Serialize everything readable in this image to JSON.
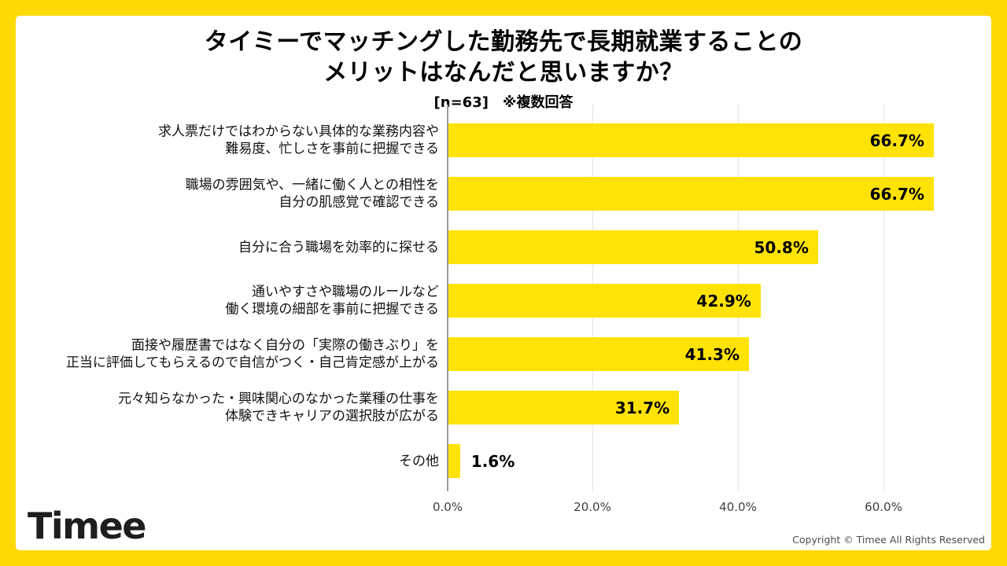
{
  "colors": {
    "frame": "#ffd905",
    "background": "#ffffff",
    "bar": "#ffe206",
    "axis": "#9a9a9a",
    "grid": "#e3e3e3"
  },
  "chart_data": {
    "type": "bar",
    "orientation": "horizontal",
    "title_lines": [
      "タイミーでマッチングした勤務先で長期就業することの",
      "メリットはなんだと思いますか？"
    ],
    "subtitle": "[n=63]　※複数回答",
    "categories": [
      [
        "求人票だけではわからない具体的な業務内容や",
        "難易度、忙しさを事前に把握できる"
      ],
      [
        "職場の雰囲気や、一緒に働く人との相性を",
        "自分の肌感覚で確認できる"
      ],
      [
        "自分に合う職場を効率的に探せる"
      ],
      [
        "通いやすさや職場のルールなど",
        "働く環境の細部を事前に把握できる"
      ],
      [
        "面接や履歴書ではなく自分の「実際の働きぶり」を",
        "正当に評価してもらえるので自信がつく・自己肯定感が上がる"
      ],
      [
        "元々知らなかった・興味関心のなかった業種の仕事を",
        "体験できキャリアの選択肢が広がる"
      ],
      [
        "その他"
      ]
    ],
    "values": [
      66.7,
      66.7,
      50.8,
      42.9,
      41.3,
      31.7,
      1.6
    ],
    "value_labels": [
      "66.7%",
      "66.7%",
      "50.8%",
      "42.9%",
      "41.3%",
      "31.7%",
      "1.6%"
    ],
    "x_axis": {
      "ticks": [
        "0.0%",
        "20.0%",
        "40.0%",
        "60.0%"
      ],
      "values": [
        0,
        20,
        40,
        60
      ]
    },
    "xlim": [
      0,
      73.5
    ],
    "grid": true,
    "legend": "none"
  },
  "footer": {
    "logo_text": "Timee",
    "copyright": "Copyright © Timee All Rights Reserved"
  }
}
